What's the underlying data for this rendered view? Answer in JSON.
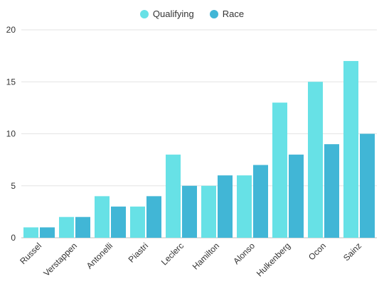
{
  "chart_data": {
    "type": "bar",
    "categories": [
      "Russel",
      "Verstappen",
      "Antonelli",
      "Piastri",
      "Leclerc",
      "Hamilton",
      "Alonso",
      "Hulkenberg",
      "Ocon",
      "Sainz"
    ],
    "series": [
      {
        "name": "Qualifying",
        "values": [
          1,
          2,
          4,
          3,
          8,
          5,
          6,
          13,
          15,
          17
        ],
        "color": "#67E1E6"
      },
      {
        "name": "Race",
        "values": [
          1,
          2,
          3,
          4,
          5,
          6,
          7,
          8,
          9,
          10
        ],
        "color": "#41B6D6"
      }
    ],
    "ylim": [
      0,
      20
    ],
    "yticks": [
      0,
      5,
      10,
      15,
      20
    ],
    "grid": true,
    "legend_position": "top-center"
  }
}
